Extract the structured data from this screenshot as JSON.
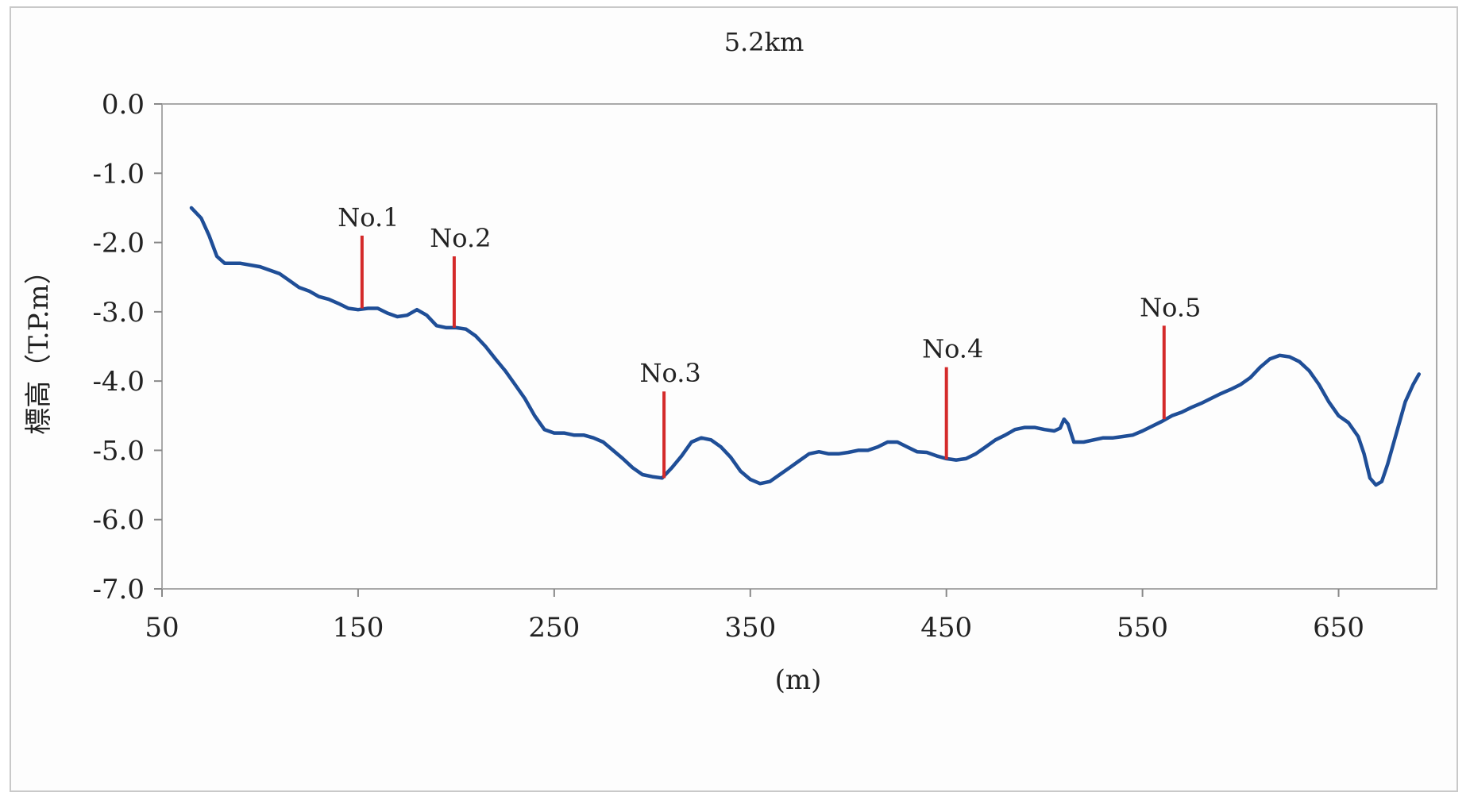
{
  "chart_data": {
    "type": "line",
    "title": "5.2km",
    "xlabel": "(m)",
    "ylabel": "標高（T.P.m）",
    "xlim": [
      50,
      700
    ],
    "ylim": [
      -7.0,
      0.0
    ],
    "x_ticks": [
      "50",
      "150",
      "250",
      "350",
      "450",
      "550",
      "650"
    ],
    "y_ticks": [
      "0.0",
      "-1.0",
      "-2.0",
      "-3.0",
      "-4.0",
      "-5.0",
      "-6.0",
      "-7.0"
    ],
    "grid": false,
    "line_color": "#1f4e97",
    "marker_color": "#d42a2a",
    "series": [
      {
        "x": [
          65,
          70,
          74,
          78,
          82,
          86,
          90,
          100,
          110,
          115,
          120,
          125,
          130,
          135,
          140,
          145,
          150,
          155,
          160,
          165,
          170,
          175,
          180,
          185,
          190,
          195,
          200,
          205,
          210,
          215,
          220,
          225,
          230,
          235,
          240,
          245,
          250,
          255,
          260,
          265,
          270,
          275,
          280,
          285,
          290,
          295,
          300,
          305,
          310,
          315,
          320,
          325,
          330,
          335,
          340,
          345,
          350,
          355,
          360,
          365,
          370,
          375,
          380,
          385,
          390,
          395,
          400,
          405,
          410,
          415,
          420,
          425,
          430,
          435,
          440,
          445,
          450,
          455,
          460,
          465,
          470,
          475,
          480,
          485,
          490,
          495,
          500,
          505,
          508,
          510,
          512,
          515,
          520,
          525,
          530,
          535,
          540,
          545,
          550,
          555,
          560,
          565,
          570,
          575,
          580,
          585,
          590,
          595,
          600,
          605,
          610,
          615,
          620,
          625,
          630,
          635,
          640,
          645,
          650,
          655,
          660,
          663,
          666,
          669,
          672,
          675,
          678,
          681,
          684,
          688,
          691
        ],
        "y": [
          -1.5,
          -1.65,
          -1.9,
          -2.2,
          -2.3,
          -2.3,
          -2.3,
          -2.35,
          -2.45,
          -2.55,
          -2.65,
          -2.7,
          -2.78,
          -2.82,
          -2.88,
          -2.95,
          -2.97,
          -2.95,
          -2.95,
          -3.02,
          -3.07,
          -3.05,
          -2.97,
          -3.05,
          -3.2,
          -3.23,
          -3.23,
          -3.25,
          -3.35,
          -3.5,
          -3.68,
          -3.85,
          -4.05,
          -4.25,
          -4.5,
          -4.7,
          -4.75,
          -4.75,
          -4.78,
          -4.78,
          -4.82,
          -4.88,
          -5.0,
          -5.12,
          -5.25,
          -5.35,
          -5.38,
          -5.4,
          -5.25,
          -5.08,
          -4.88,
          -4.82,
          -4.85,
          -4.95,
          -5.1,
          -5.3,
          -5.42,
          -5.48,
          -5.45,
          -5.35,
          -5.25,
          -5.15,
          -5.05,
          -5.02,
          -5.05,
          -5.05,
          -5.03,
          -5.0,
          -5.0,
          -4.95,
          -4.88,
          -4.88,
          -4.95,
          -5.02,
          -5.03,
          -5.08,
          -5.12,
          -5.14,
          -5.12,
          -5.05,
          -4.95,
          -4.85,
          -4.78,
          -4.7,
          -4.67,
          -4.67,
          -4.7,
          -4.72,
          -4.68,
          -4.55,
          -4.62,
          -4.88,
          -4.88,
          -4.85,
          -4.82,
          -4.82,
          -4.8,
          -4.78,
          -4.72,
          -4.65,
          -4.58,
          -4.5,
          -4.45,
          -4.38,
          -4.32,
          -4.25,
          -4.18,
          -4.12,
          -4.05,
          -3.95,
          -3.8,
          -3.68,
          -3.63,
          -3.65,
          -3.72,
          -3.85,
          -4.05,
          -4.3,
          -4.5,
          -4.6,
          -4.8,
          -5.05,
          -5.4,
          -5.5,
          -5.45,
          -5.2,
          -4.9,
          -4.6,
          -4.3,
          -4.05,
          -3.9
        ]
      }
    ],
    "markers": [
      {
        "label": "No.1",
        "x": 152,
        "y_top": -1.9,
        "y_bottom": -2.95
      },
      {
        "label": "No.2",
        "x": 199,
        "y_top": -2.2,
        "y_bottom": -3.23
      },
      {
        "label": "No.3",
        "x": 306,
        "y_top": -4.15,
        "y_bottom": -5.4
      },
      {
        "label": "No.4",
        "x": 450,
        "y_top": -3.8,
        "y_bottom": -5.13
      },
      {
        "label": "No.5",
        "x": 561,
        "y_top": -3.2,
        "y_bottom": -4.55
      }
    ]
  }
}
